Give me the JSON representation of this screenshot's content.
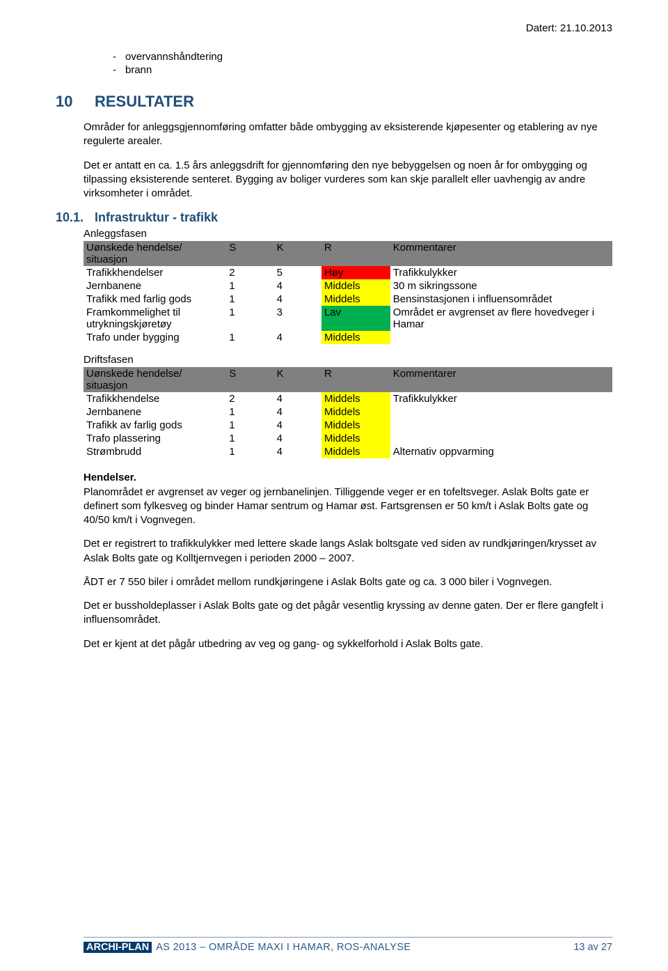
{
  "date_line": "Datert: 21.10.2013",
  "bullets": [
    "overvannshåndtering",
    "brann"
  ],
  "heading10": {
    "num": "10",
    "title": "RESULTATER"
  },
  "intro": {
    "p1": "Områder for anleggsgjennomføring omfatter både ombygging av eksisterende kjøpesenter og etablering av nye regulerte arealer.",
    "p2": "Det er antatt en ca. 1.5 års anleggsdrift for gjennomføring den nye bebyggelsen og noen år for ombygging og tilpassing eksisterende senteret. Bygging av boliger vurderes som kan skje parallelt eller uavhengig av andre virksomheter i området."
  },
  "heading101": {
    "num": "10.1.",
    "title": "Infrastruktur - trafikk"
  },
  "colors": {
    "header": "#808080",
    "high": "#ff0000",
    "mid": "#ffff00",
    "low": "#00b050"
  },
  "risk_labels": {
    "high": "Høy",
    "mid": "Middels",
    "low": "Lav"
  },
  "table_header": {
    "col1": "Uønskede hendelse/ situasjon",
    "col1_alt": "Uønskede hendelse/ situasjon",
    "s": "S",
    "k": "K",
    "r": "R",
    "c": "Kommentarer"
  },
  "phaseA": {
    "label": "Anleggsfasen",
    "rows": [
      {
        "desc": "Trafikkhendelser",
        "s": "2",
        "k": "5",
        "r": "high",
        "c": "Trafikkulykker"
      },
      {
        "desc": "Jernbanene",
        "s": "1",
        "k": "4",
        "r": "mid",
        "c": "30 m sikringssone"
      },
      {
        "desc": "Trafikk med farlig gods",
        "s": "1",
        "k": "4",
        "r": "mid",
        "c": "Bensinstasjonen i influensområdet"
      },
      {
        "desc": "Framkommelighet til utrykningskjøretøy",
        "s": "1",
        "k": "3",
        "r": "low",
        "c": "Området er avgrenset av flere hovedveger i Hamar"
      },
      {
        "desc": "Trafo under bygging",
        "s": "1",
        "k": "4",
        "r": "mid",
        "c": ""
      }
    ]
  },
  "phaseB": {
    "label": "Driftsfasen",
    "rows": [
      {
        "desc": "Trafikkhendelse",
        "s": "2",
        "k": "4",
        "r": "mid",
        "c": "Trafikkulykker"
      },
      {
        "desc": "Jernbanene",
        "s": "1",
        "k": "4",
        "r": "mid",
        "c": ""
      },
      {
        "desc": "Trafikk av farlig gods",
        "s": "1",
        "k": "4",
        "r": "mid",
        "c": ""
      },
      {
        "desc": "Trafo plassering",
        "s": "1",
        "k": "4",
        "r": "mid",
        "c": ""
      },
      {
        "desc": "Strømbrudd",
        "s": "1",
        "k": "4",
        "r": "mid",
        "c": "Alternativ oppvarming"
      }
    ]
  },
  "paras": {
    "h": "Hendelser.",
    "p3": "Planområdet er avgrenset av veger og jernbanelinjen. Tilliggende veger er en tofeltsveger. Aslak Bolts gate er definert som fylkesveg og binder Hamar sentrum og Hamar øst. Fartsgrensen er 50 km/t i Aslak Bolts gate og 40/50 km/t i Vognvegen.",
    "p4": "Det er registrert to trafikkulykker med lettere skade langs Aslak boltsgate ved siden av rundkjøringen/krysset av Aslak Bolts gate og Kolltjernvegen i perioden 2000 – 2007.",
    "p5": "ÅDT er 7 550 biler i området mellom rundkjøringene i Aslak Bolts gate og ca. 3 000 biler i Vognvegen.",
    "p6": "Det er bussholdeplasser i Aslak Bolts gate og det pågår vesentlig kryssing av denne gaten. Der er flere gangfelt i influensområdet.",
    "p7": "Det er kjent at det pågår utbedring av veg og gang- og sykkelforhold i Aslak Bolts gate."
  },
  "footer": {
    "badge": "ARCHI-PLAN",
    "text": "AS 2013 – OMRÅDE MAXI I HAMAR, ROS-ANALYSE",
    "page": "13 av 27"
  }
}
